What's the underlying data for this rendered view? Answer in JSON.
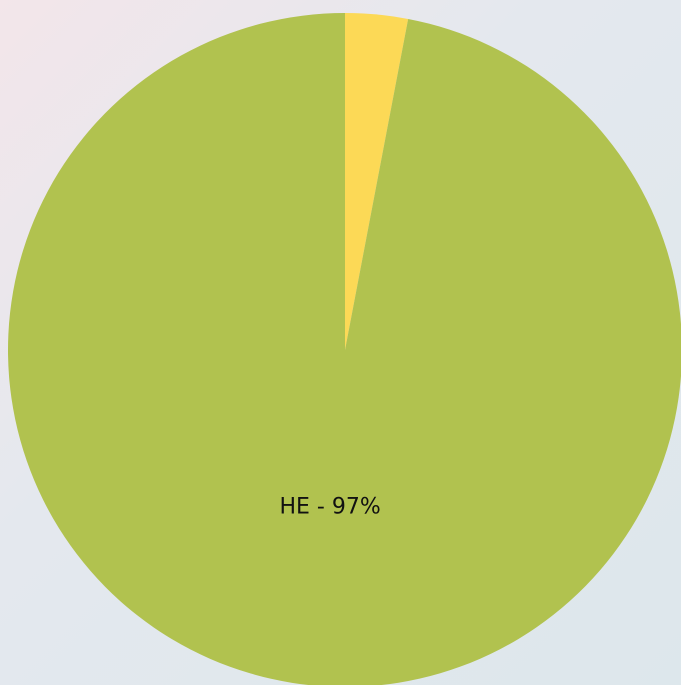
{
  "chart_data": {
    "type": "pie",
    "categories": [
      null,
      null
    ],
    "values": [
      3,
      97
    ],
    "value_labels": [
      null,
      "HE - 97%"
    ],
    "colors": [
      "#fcd956",
      "#b1c24f"
    ]
  }
}
